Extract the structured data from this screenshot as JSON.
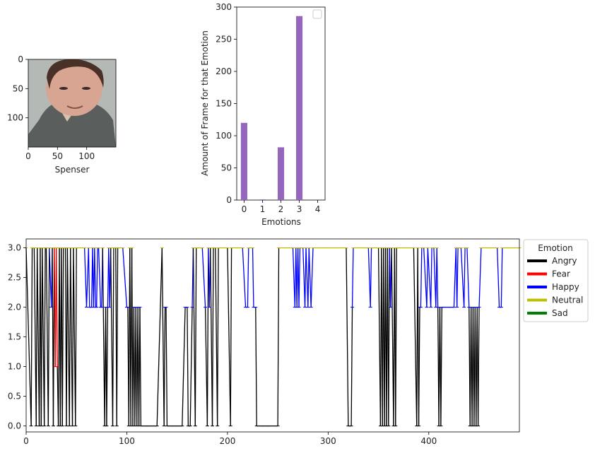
{
  "chart_data": [
    {
      "type": "image",
      "xlabel": "Spenser",
      "xticks": [
        0,
        50,
        100
      ],
      "yticks": [
        0,
        50,
        100
      ],
      "xlim": [
        0,
        150
      ],
      "ylim": [
        150,
        0
      ]
    },
    {
      "type": "bar",
      "xlabel": "Emotions",
      "ylabel": "Amount of Frame for that Emotion",
      "categories": [
        "0",
        "1",
        "2",
        "3",
        "4"
      ],
      "values": [
        120,
        1,
        82,
        286,
        0
      ],
      "ylim": [
        0,
        300
      ],
      "yticks": [
        0,
        50,
        100,
        150,
        200,
        250,
        300
      ],
      "legend": "top-right",
      "color": "#9467bd"
    },
    {
      "type": "line",
      "xlim": [
        0,
        490
      ],
      "ylim": [
        -0.1,
        3.15
      ],
      "xticks": [
        0,
        100,
        200,
        300,
        400
      ],
      "yticks": [
        "0.0",
        "0.5",
        "1.0",
        "1.5",
        "2.0",
        "2.5",
        "3.0"
      ],
      "legend_title": "Emotion",
      "legend_position": "outside-right",
      "series": [
        {
          "name": "Angry",
          "color": "#000000"
        },
        {
          "name": "Fear",
          "color": "#ff0000"
        },
        {
          "name": "Happy",
          "color": "#0000ff"
        },
        {
          "name": "Neutral",
          "color": "#bfbf00"
        },
        {
          "name": "Sad",
          "color": "#008000"
        }
      ],
      "sequence": [
        [
          0,
          3
        ],
        [
          5,
          0
        ],
        [
          6,
          3
        ],
        [
          8,
          3
        ],
        [
          10,
          0
        ],
        [
          11,
          3
        ],
        [
          13,
          0
        ],
        [
          14,
          3
        ],
        [
          15,
          0
        ],
        [
          16,
          3
        ],
        [
          18,
          0
        ],
        [
          19,
          3
        ],
        [
          20,
          3
        ],
        [
          22,
          0
        ],
        [
          23,
          3
        ],
        [
          25,
          2
        ],
        [
          26,
          3
        ],
        [
          27,
          0
        ],
        [
          28,
          3
        ],
        [
          29,
          1
        ],
        [
          30,
          3
        ],
        [
          31,
          1
        ],
        [
          32,
          0
        ],
        [
          33,
          3
        ],
        [
          34,
          0
        ],
        [
          35,
          3
        ],
        [
          36,
          0
        ],
        [
          37,
          3
        ],
        [
          39,
          3
        ],
        [
          40,
          0
        ],
        [
          41,
          3
        ],
        [
          43,
          0
        ],
        [
          44,
          3
        ],
        [
          46,
          0
        ],
        [
          47,
          3
        ],
        [
          49,
          0
        ],
        [
          50,
          3
        ],
        [
          58,
          3
        ],
        [
          60,
          2
        ],
        [
          62,
          3
        ],
        [
          63,
          2
        ],
        [
          65,
          2
        ],
        [
          66,
          3
        ],
        [
          67,
          2
        ],
        [
          68,
          3
        ],
        [
          69,
          2
        ],
        [
          70,
          2
        ],
        [
          71,
          3
        ],
        [
          72,
          3
        ],
        [
          74,
          2
        ],
        [
          75,
          2
        ],
        [
          76,
          3
        ],
        [
          78,
          0
        ],
        [
          79,
          2
        ],
        [
          80,
          0
        ],
        [
          81,
          2
        ],
        [
          82,
          3
        ],
        [
          83,
          2
        ],
        [
          84,
          3
        ],
        [
          86,
          0
        ],
        [
          87,
          3
        ],
        [
          89,
          3
        ],
        [
          90,
          0
        ],
        [
          91,
          3
        ],
        [
          96,
          3
        ],
        [
          100,
          2
        ],
        [
          101,
          2
        ],
        [
          102,
          0
        ],
        [
          103,
          3
        ],
        [
          104,
          0
        ],
        [
          105,
          3
        ],
        [
          106,
          0
        ],
        [
          107,
          2
        ],
        [
          108,
          0
        ],
        [
          109,
          2
        ],
        [
          110,
          0
        ],
        [
          111,
          2
        ],
        [
          112,
          0
        ],
        [
          113,
          2
        ],
        [
          114,
          0
        ],
        [
          120,
          0
        ],
        [
          130,
          0
        ],
        [
          135,
          3
        ],
        [
          137,
          0
        ],
        [
          138,
          2
        ],
        [
          139,
          2
        ],
        [
          140,
          0
        ],
        [
          145,
          0
        ],
        [
          150,
          0
        ],
        [
          155,
          0
        ],
        [
          158,
          2
        ],
        [
          160,
          2
        ],
        [
          161,
          0
        ],
        [
          163,
          0
        ],
        [
          165,
          2
        ],
        [
          166,
          3
        ],
        [
          168,
          0
        ],
        [
          169,
          3
        ],
        [
          170,
          3
        ],
        [
          175,
          3
        ],
        [
          178,
          2
        ],
        [
          180,
          0
        ],
        [
          181,
          3
        ],
        [
          182,
          2
        ],
        [
          183,
          3
        ],
        [
          185,
          0
        ],
        [
          186,
          3
        ],
        [
          188,
          3
        ],
        [
          190,
          0
        ],
        [
          191,
          3
        ],
        [
          195,
          3
        ],
        [
          200,
          3
        ],
        [
          203,
          0
        ],
        [
          204,
          3
        ],
        [
          210,
          3
        ],
        [
          215,
          3
        ],
        [
          218,
          2
        ],
        [
          220,
          2
        ],
        [
          221,
          3
        ],
        [
          225,
          3
        ],
        [
          226,
          2
        ],
        [
          228,
          2
        ],
        [
          229,
          0
        ],
        [
          235,
          0
        ],
        [
          240,
          0
        ],
        [
          250,
          0
        ],
        [
          251,
          3
        ],
        [
          260,
          3
        ],
        [
          265,
          3
        ],
        [
          267,
          2
        ],
        [
          268,
          3
        ],
        [
          269,
          2
        ],
        [
          270,
          3
        ],
        [
          271,
          2
        ],
        [
          272,
          3
        ],
        [
          275,
          3
        ],
        [
          277,
          2
        ],
        [
          278,
          3
        ],
        [
          280,
          2
        ],
        [
          281,
          3
        ],
        [
          283,
          2
        ],
        [
          285,
          3
        ],
        [
          290,
          3
        ],
        [
          300,
          3
        ],
        [
          310,
          3
        ],
        [
          318,
          3
        ],
        [
          320,
          0
        ],
        [
          323,
          0
        ],
        [
          324,
          2
        ],
        [
          325,
          3
        ],
        [
          335,
          3
        ],
        [
          340,
          3
        ],
        [
          342,
          2
        ],
        [
          343,
          3
        ],
        [
          350,
          3
        ],
        [
          352,
          0
        ],
        [
          353,
          3
        ],
        [
          354,
          0
        ],
        [
          355,
          3
        ],
        [
          356,
          0
        ],
        [
          357,
          3
        ],
        [
          358,
          0
        ],
        [
          359,
          3
        ],
        [
          360,
          0
        ],
        [
          361,
          3
        ],
        [
          362,
          2
        ],
        [
          363,
          3
        ],
        [
          365,
          0
        ],
        [
          366,
          3
        ],
        [
          367,
          0
        ],
        [
          368,
          3
        ],
        [
          370,
          3
        ],
        [
          375,
          3
        ],
        [
          380,
          3
        ],
        [
          385,
          3
        ],
        [
          388,
          0
        ],
        [
          389,
          3
        ],
        [
          390,
          0
        ],
        [
          391,
          2
        ],
        [
          392,
          2
        ],
        [
          393,
          3
        ],
        [
          395,
          3
        ],
        [
          398,
          2
        ],
        [
          399,
          3
        ],
        [
          402,
          2
        ],
        [
          403,
          3
        ],
        [
          405,
          3
        ],
        [
          407,
          2
        ],
        [
          408,
          3
        ],
        [
          409,
          2
        ],
        [
          410,
          0
        ],
        [
          411,
          2
        ],
        [
          412,
          0
        ],
        [
          413,
          2
        ],
        [
          415,
          2
        ],
        [
          420,
          2
        ],
        [
          425,
          2
        ],
        [
          427,
          3
        ],
        [
          428,
          2
        ],
        [
          429,
          3
        ],
        [
          432,
          3
        ],
        [
          435,
          2
        ],
        [
          436,
          3
        ],
        [
          438,
          3
        ],
        [
          440,
          2
        ],
        [
          441,
          0
        ],
        [
          442,
          2
        ],
        [
          443,
          0
        ],
        [
          444,
          2
        ],
        [
          445,
          0
        ],
        [
          446,
          2
        ],
        [
          447,
          0
        ],
        [
          448,
          2
        ],
        [
          449,
          0
        ],
        [
          450,
          2
        ],
        [
          452,
          3
        ],
        [
          460,
          3
        ],
        [
          468,
          3
        ],
        [
          470,
          2
        ],
        [
          472,
          2
        ],
        [
          473,
          3
        ],
        [
          480,
          3
        ],
        [
          490,
          3
        ]
      ]
    }
  ]
}
